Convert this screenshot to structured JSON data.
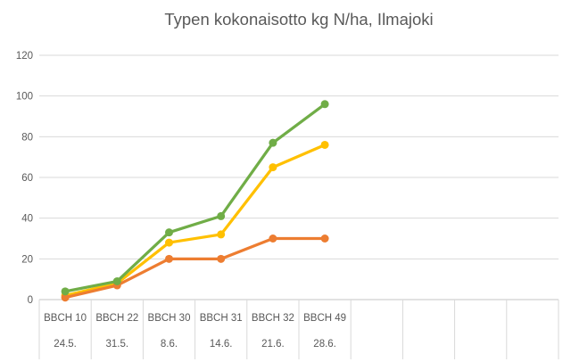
{
  "chart_data": {
    "type": "line",
    "title": "Typen kokonaisotto kg N/ha, Ilmajoki",
    "xlabel": "",
    "ylabel": "",
    "ylim": [
      0,
      120
    ],
    "yticks": [
      0,
      20,
      40,
      60,
      80,
      100,
      120
    ],
    "grid": true,
    "legend": "none",
    "categories": [
      "BBCH 10",
      "BBCH 22",
      "BBCH 30",
      "BBCH 31",
      "BBCH 32",
      "BBCH 49"
    ],
    "categories_dates": [
      "24.5.",
      "31.5.",
      "8.6.",
      "14.6.",
      "21.6.",
      "28.6."
    ],
    "trailing_empty_categories": 4,
    "series": [
      {
        "name": "series-yellow",
        "color": "#FFC000",
        "values": [
          2,
          8,
          28,
          32,
          65,
          76
        ]
      },
      {
        "name": "series-orange",
        "color": "#ED7D31",
        "values": [
          1,
          7,
          20,
          20,
          30,
          30
        ]
      },
      {
        "name": "series-green",
        "color": "#70AD47",
        "values": [
          4,
          9,
          33,
          41,
          77,
          96
        ]
      }
    ],
    "colors": {
      "gridline": "#D9D9D9",
      "axis_line": "#C6C6C6",
      "label_separator": "#D9D9D9",
      "tick_text": "#595959",
      "title_text": "#595959"
    }
  }
}
